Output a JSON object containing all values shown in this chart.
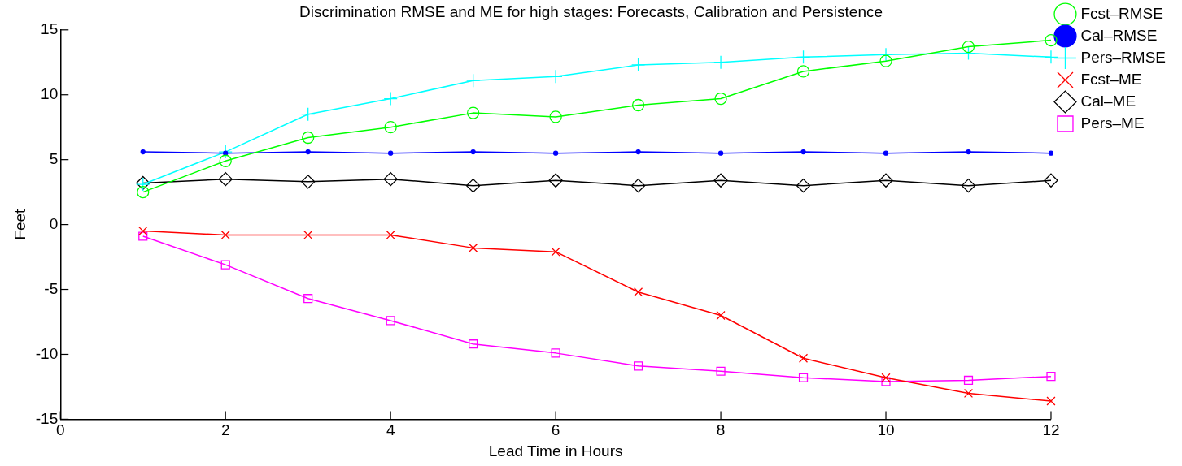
{
  "chart_data": {
    "type": "line",
    "title": "Discrimination RMSE and ME for high stages: Forecasts, Calibration and Persistence",
    "xlabel": "Lead Time in Hours",
    "ylabel": "Feet",
    "x": [
      1,
      2,
      3,
      4,
      5,
      6,
      7,
      8,
      9,
      10,
      11,
      12
    ],
    "xlim": [
      0,
      12
    ],
    "xticks": [
      0,
      2,
      4,
      6,
      8,
      10,
      12
    ],
    "ylim": [
      -15,
      15
    ],
    "yticks": [
      -15,
      -10,
      -5,
      0,
      5,
      10,
      15
    ],
    "grid": false,
    "legend": "top right",
    "line_style": "solid",
    "series": [
      {
        "name": "Fcst–RMSE",
        "color": "#00ff00",
        "marker": "circle",
        "values": [
          2.5,
          4.9,
          6.7,
          7.5,
          8.6,
          8.3,
          9.2,
          9.7,
          11.8,
          12.6,
          13.7,
          14.2
        ]
      },
      {
        "name": "Cal–RMSE",
        "color": "#0000ff",
        "marker": "point",
        "values": [
          5.6,
          5.5,
          5.6,
          5.5,
          5.6,
          5.5,
          5.6,
          5.5,
          5.6,
          5.5,
          5.6,
          5.5
        ]
      },
      {
        "name": "Pers–RMSE",
        "color": "#00ffff",
        "marker": "cross",
        "values": [
          3.1,
          5.6,
          8.5,
          9.7,
          11.1,
          11.4,
          12.3,
          12.5,
          12.9,
          13.1,
          13.2,
          12.9
        ]
      },
      {
        "name": "Fcst–ME",
        "color": "#ff0000",
        "marker": "x",
        "values": [
          -0.5,
          -0.8,
          -0.8,
          -0.8,
          -1.8,
          -2.1,
          -5.2,
          -7.0,
          -10.3,
          -11.8,
          -13.0,
          -13.6
        ]
      },
      {
        "name": "Cal–ME",
        "color": "#000000",
        "marker": "diamond",
        "values": [
          3.2,
          3.5,
          3.3,
          3.5,
          3.0,
          3.4,
          3.0,
          3.4,
          3.0,
          3.4,
          3.0,
          3.4
        ]
      },
      {
        "name": "Pers–ME",
        "color": "#ff00ff",
        "marker": "square",
        "values": [
          -0.9,
          -3.1,
          -5.7,
          -7.4,
          -9.2,
          -9.9,
          -10.9,
          -11.3,
          -11.8,
          -12.1,
          -12.0,
          -11.7
        ]
      }
    ]
  }
}
